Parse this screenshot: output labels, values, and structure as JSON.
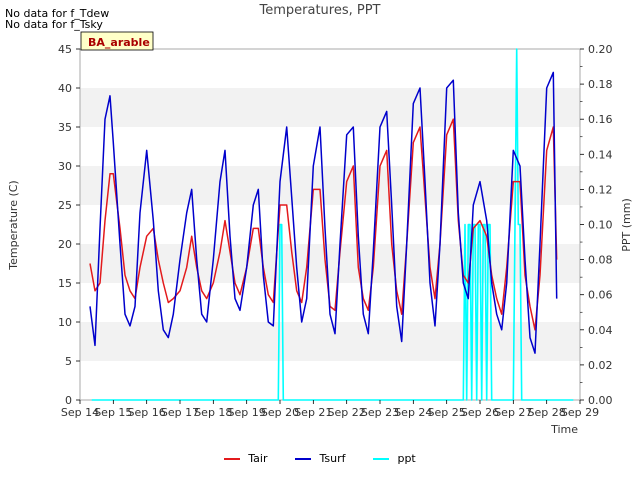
{
  "notes": [
    "No data for f_Tdew",
    "No data for f_Tsky"
  ],
  "chart_data": {
    "type": "line",
    "title": "Temperatures, PPT",
    "xlabel": "Time",
    "ylabel_left": "Temperature (C)",
    "ylabel_right": "PPT (mm)",
    "site_label": "BA_arable",
    "x_ticks": [
      "Sep 14",
      "Sep 15",
      "Sep 16",
      "Sep 17",
      "Sep 18",
      "Sep 19",
      "Sep 20",
      "Sep 21",
      "Sep 22",
      "Sep 23",
      "Sep 24",
      "Sep 25",
      "Sep 26",
      "Sep 27",
      "Sep 28",
      "Sep 29"
    ],
    "xlim": [
      14,
      29
    ],
    "ylim_left": [
      0,
      45
    ],
    "ylim_right": [
      0,
      0.2
    ],
    "y_ticks_left": [
      0,
      5,
      10,
      15,
      20,
      25,
      30,
      35,
      40,
      45
    ],
    "y_ticks_right": [
      "0.00",
      "0.02",
      "0.04",
      "0.06",
      "0.08",
      "0.10",
      "0.12",
      "0.14",
      "0.16",
      "0.18",
      "0.20"
    ],
    "grid": "alternating horizontal bands",
    "legend_position": "bottom-center",
    "series": [
      {
        "name": "Tair",
        "axis": "left",
        "color": "#e31a1c",
        "x": [
          14.3,
          14.45,
          14.6,
          14.75,
          14.9,
          15.0,
          15.2,
          15.35,
          15.5,
          15.65,
          15.8,
          16.0,
          16.2,
          16.35,
          16.5,
          16.65,
          16.8,
          17.0,
          17.2,
          17.35,
          17.5,
          17.65,
          17.8,
          18.0,
          18.2,
          18.35,
          18.5,
          18.65,
          18.8,
          19.0,
          19.2,
          19.35,
          19.5,
          19.65,
          19.8,
          20.0,
          20.2,
          20.35,
          20.5,
          20.65,
          20.8,
          21.0,
          21.2,
          21.35,
          21.5,
          21.65,
          21.8,
          22.0,
          22.2,
          22.35,
          22.5,
          22.65,
          22.8,
          23.0,
          23.2,
          23.35,
          23.5,
          23.65,
          23.8,
          24.0,
          24.2,
          24.35,
          24.5,
          24.65,
          24.8,
          25.0,
          25.2,
          25.35,
          25.5,
          25.65,
          25.8,
          26.0,
          26.2,
          26.35,
          26.5,
          26.65,
          26.8,
          27.0,
          27.2,
          27.35,
          27.5,
          27.65,
          27.8,
          28.0,
          28.2,
          28.3
        ],
        "y": [
          17.5,
          14,
          15,
          23,
          29,
          29,
          22,
          16,
          14,
          13,
          17,
          21,
          22,
          18,
          15,
          12.5,
          13,
          14,
          17,
          21,
          17,
          14,
          13,
          15,
          19,
          23,
          19,
          15,
          13.5,
          17,
          22,
          22,
          17,
          13.5,
          12.5,
          25,
          25,
          19,
          14,
          12.5,
          17,
          27,
          27,
          18,
          12,
          11.5,
          19,
          28,
          30,
          17,
          13,
          11.5,
          17,
          30,
          32,
          20,
          14,
          11,
          20,
          33,
          35,
          26,
          17,
          13,
          20,
          34,
          36,
          23,
          16,
          15,
          22,
          23,
          21,
          16,
          13,
          11,
          17,
          28,
          28,
          16,
          12,
          9,
          16,
          32,
          35,
          18
        ]
      },
      {
        "name": "Tsurf",
        "axis": "left",
        "color": "#0000cc",
        "x": [
          14.3,
          14.45,
          14.6,
          14.75,
          14.9,
          15.0,
          15.2,
          15.35,
          15.5,
          15.65,
          15.8,
          16.0,
          16.2,
          16.35,
          16.5,
          16.65,
          16.8,
          17.0,
          17.2,
          17.35,
          17.5,
          17.65,
          17.8,
          18.0,
          18.2,
          18.35,
          18.5,
          18.65,
          18.8,
          19.0,
          19.2,
          19.35,
          19.5,
          19.65,
          19.8,
          20.0,
          20.2,
          20.35,
          20.5,
          20.65,
          20.8,
          21.0,
          21.2,
          21.35,
          21.5,
          21.65,
          21.8,
          22.0,
          22.2,
          22.35,
          22.5,
          22.65,
          22.8,
          23.0,
          23.2,
          23.35,
          23.5,
          23.65,
          23.8,
          24.0,
          24.2,
          24.35,
          24.5,
          24.65,
          24.8,
          25.0,
          25.2,
          25.35,
          25.5,
          25.65,
          25.8,
          26.0,
          26.2,
          26.35,
          26.5,
          26.65,
          26.8,
          27.0,
          27.2,
          27.35,
          27.5,
          27.65,
          27.8,
          28.0,
          28.2,
          28.3
        ],
        "y": [
          12,
          7,
          22,
          36,
          39,
          33,
          20,
          11,
          9.5,
          12,
          24,
          32,
          23,
          14,
          9,
          8,
          11,
          18,
          24,
          27,
          18,
          11,
          10,
          18,
          28,
          32,
          21,
          13,
          11.5,
          17,
          25,
          27,
          16,
          10,
          9.5,
          28,
          35,
          26,
          17,
          10,
          13,
          30,
          35,
          22,
          11,
          8.5,
          20,
          34,
          35,
          21,
          11,
          8.5,
          19,
          35,
          37,
          25,
          12,
          7.5,
          20,
          38,
          40,
          28,
          15,
          9.5,
          20,
          40,
          41,
          24,
          15,
          13,
          25,
          28,
          23,
          15,
          11,
          9,
          15,
          32,
          30,
          18,
          8,
          6,
          20,
          40,
          42,
          13
        ]
      },
      {
        "name": "ppt",
        "axis": "right",
        "color": "#00ffff",
        "x": [
          14.35,
          19.95,
          20.0,
          20.05,
          20.1,
          25.5,
          25.55,
          25.6,
          25.65,
          25.7,
          25.75,
          25.8,
          25.85,
          25.9,
          25.95,
          26.0,
          26.05,
          26.1,
          26.15,
          26.2,
          26.25,
          26.3,
          26.35,
          27.0,
          27.05,
          27.1,
          27.15,
          27.2,
          27.25,
          28.8
        ],
        "y": [
          0,
          0,
          0.1,
          0.1,
          0,
          0,
          0.1,
          0,
          0.1,
          0.1,
          0,
          0.1,
          0.1,
          0,
          0.1,
          0.1,
          0,
          0.1,
          0.1,
          0,
          0.1,
          0.1,
          0,
          0,
          0.1,
          0.2,
          0.1,
          0.1,
          0,
          0
        ]
      }
    ]
  }
}
